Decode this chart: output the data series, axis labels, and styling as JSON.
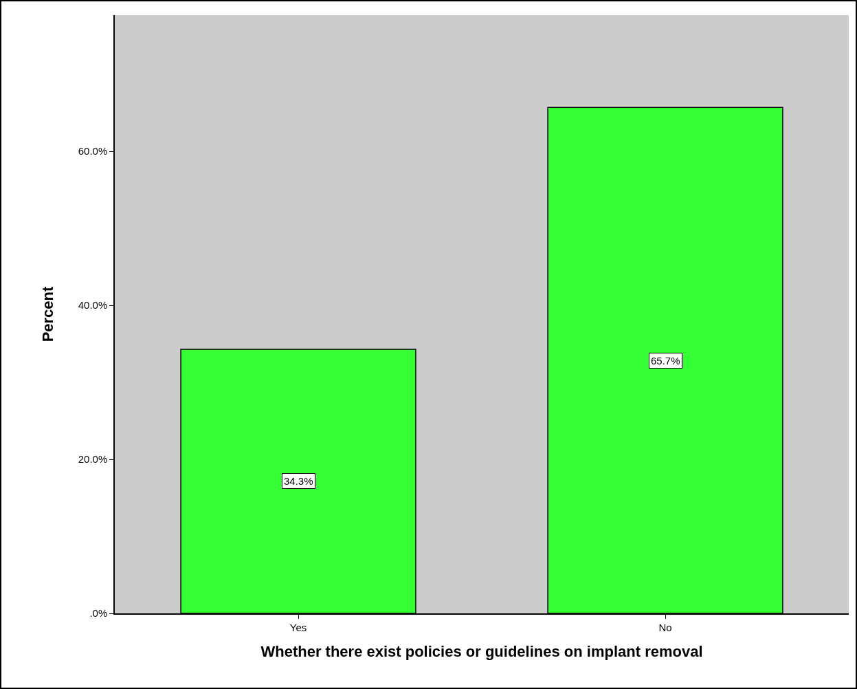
{
  "chart_data": {
    "type": "bar",
    "xlabel": "Whether there exist policies or guidelines on implant removal",
    "ylabel": "Percent",
    "categories": [
      "Yes",
      "No"
    ],
    "values": [
      34.3,
      65.7
    ],
    "value_labels": [
      "34.3%",
      "65.7%"
    ],
    "color": "#33ff33",
    "ylim": [
      0,
      77.7
    ],
    "yticks": [
      {
        "value": 0,
        "label": ".0%"
      },
      {
        "value": 20,
        "label": "20.0%"
      },
      {
        "value": 40,
        "label": "40.0%"
      },
      {
        "value": 60,
        "label": "60.0%"
      }
    ],
    "grid": false,
    "legend": false
  }
}
